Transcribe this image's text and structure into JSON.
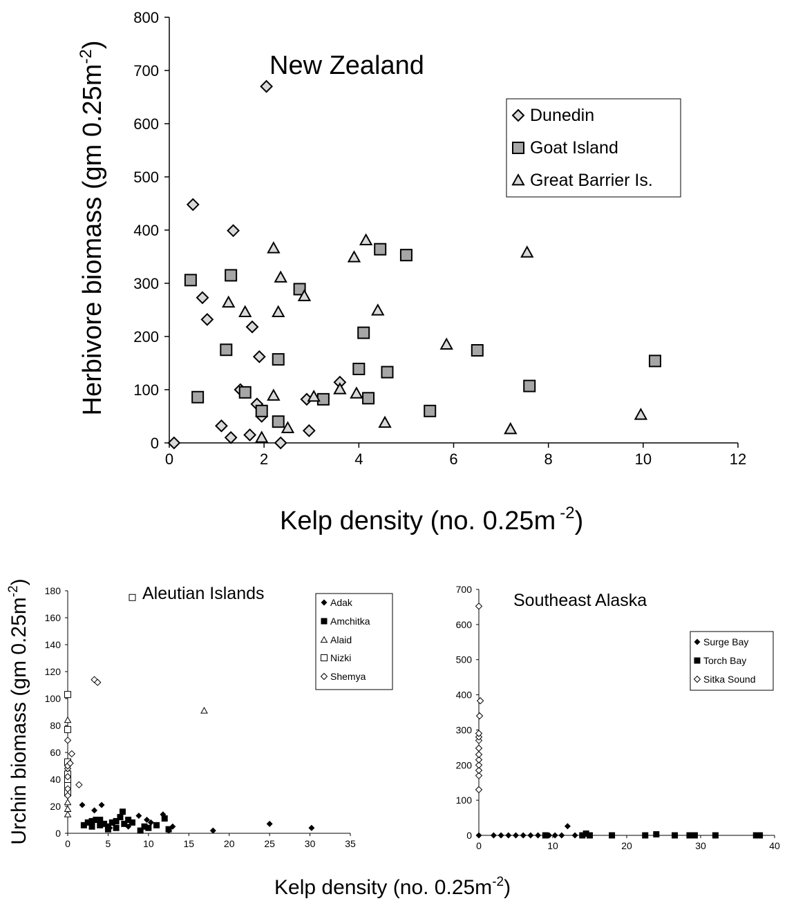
{
  "chart_data": [
    {
      "type": "scatter",
      "title": "New Zealand",
      "xlabel": "Kelp density (no. 0.25m",
      "xlabel_sup": "-2",
      "xlabel_end": ")",
      "ylabel": "Herbivore biomass (gm 0.25m",
      "ylabel_sup": "-2",
      "ylabel_end": ")",
      "xlim": [
        0,
        12
      ],
      "ylim": [
        0,
        800
      ],
      "xticks": [
        0,
        2,
        4,
        6,
        8,
        10,
        12
      ],
      "yticks": [
        0,
        100,
        200,
        300,
        400,
        500,
        600,
        700,
        800
      ],
      "legend_position": "top-right",
      "series": [
        {
          "name": "Dunedin",
          "marker": "diamond",
          "fill": "#d9d9d9",
          "points": [
            [
              0.1,
              0
            ],
            [
              0.5,
              448
            ],
            [
              0.7,
              273
            ],
            [
              0.8,
              232
            ],
            [
              1.1,
              32
            ],
            [
              1.3,
              10
            ],
            [
              1.35,
              399
            ],
            [
              1.5,
              100
            ],
            [
              1.7,
              15
            ],
            [
              1.75,
              218
            ],
            [
              1.85,
              73
            ],
            [
              1.9,
              162
            ],
            [
              1.95,
              50
            ],
            [
              2.05,
              670
            ],
            [
              2.35,
              0
            ],
            [
              2.9,
              82
            ],
            [
              2.95,
              23
            ],
            [
              3.6,
              114
            ]
          ]
        },
        {
          "name": "Goat Island",
          "marker": "square",
          "fill": "#a6a6a6",
          "points": [
            [
              0.45,
              306
            ],
            [
              0.6,
              86
            ],
            [
              1.2,
              175
            ],
            [
              1.3,
              315
            ],
            [
              1.6,
              95
            ],
            [
              1.95,
              60
            ],
            [
              2.3,
              40
            ],
            [
              2.3,
              157
            ],
            [
              2.75,
              289
            ],
            [
              3.25,
              82
            ],
            [
              4.0,
              139
            ],
            [
              4.1,
              207
            ],
            [
              4.2,
              84
            ],
            [
              4.45,
              364
            ],
            [
              4.6,
              133
            ],
            [
              5.0,
              353
            ],
            [
              5.5,
              60
            ],
            [
              6.5,
              174
            ],
            [
              7.6,
              107
            ],
            [
              10.25,
              154
            ]
          ]
        },
        {
          "name": "Great Barrier Is.",
          "marker": "triangle",
          "fill": "#d9d9d9",
          "points": [
            [
              1.25,
              264
            ],
            [
              1.6,
              246
            ],
            [
              1.95,
              10
            ],
            [
              2.2,
              89
            ],
            [
              2.2,
              366
            ],
            [
              2.3,
              246
            ],
            [
              2.35,
              311
            ],
            [
              2.5,
              28
            ],
            [
              2.85,
              276
            ],
            [
              3.05,
              87
            ],
            [
              3.6,
              101
            ],
            [
              3.9,
              349
            ],
            [
              3.95,
              93
            ],
            [
              4.15,
              381
            ],
            [
              4.4,
              249
            ],
            [
              4.55,
              38
            ],
            [
              5.85,
              185
            ],
            [
              7.2,
              26
            ],
            [
              7.55,
              358
            ],
            [
              9.95,
              53
            ]
          ]
        }
      ]
    },
    {
      "type": "scatter",
      "title": "Aleutian Islands",
      "xlabel": "Kelp density (no. 0.25m",
      "xlabel_sup": "-2",
      "xlabel_end": ")",
      "ylabel": "Urchin biomass (gm 0.25m",
      "ylabel_sup": "-2",
      "ylabel_end": ")",
      "xlim": [
        0,
        35
      ],
      "ylim": [
        0,
        180
      ],
      "xticks": [
        0,
        5,
        10,
        15,
        20,
        25,
        30,
        35
      ],
      "yticks": [
        0,
        20,
        40,
        60,
        80,
        100,
        120,
        140,
        160,
        180
      ],
      "legend_position": "top-right",
      "series": [
        {
          "name": "Adak",
          "marker": "diamond-filled",
          "points": [
            [
              1.8,
              21
            ],
            [
              3.3,
              17
            ],
            [
              4.2,
              21
            ],
            [
              5.2,
              4
            ],
            [
              7.5,
              5
            ],
            [
              8.8,
              13
            ],
            [
              9.8,
              10
            ],
            [
              10.3,
              8
            ],
            [
              11.8,
              14
            ],
            [
              12.5,
              2
            ],
            [
              13.0,
              5
            ],
            [
              18.0,
              2
            ],
            [
              25.0,
              7
            ],
            [
              30.2,
              4
            ]
          ]
        },
        {
          "name": "Amchitka",
          "marker": "square-filled",
          "points": [
            [
              2,
              6
            ],
            [
              2.5,
              8
            ],
            [
              3,
              9
            ],
            [
              3,
              5
            ],
            [
              3.5,
              10
            ],
            [
              4,
              6
            ],
            [
              4,
              10
            ],
            [
              4.5,
              7
            ],
            [
              5,
              3
            ],
            [
              5,
              5
            ],
            [
              5.5,
              8
            ],
            [
              6,
              4
            ],
            [
              6,
              9
            ],
            [
              6.5,
              12
            ],
            [
              6.8,
              16
            ],
            [
              7,
              7
            ],
            [
              7.5,
              10
            ],
            [
              8,
              8
            ],
            [
              9,
              2
            ],
            [
              9.5,
              5
            ],
            [
              10,
              4
            ],
            [
              11,
              6
            ],
            [
              12,
              11
            ],
            [
              12.5,
              3
            ]
          ]
        },
        {
          "name": "Alaid",
          "marker": "triangle-open",
          "points": [
            [
              0,
              14
            ],
            [
              0,
              18
            ],
            [
              0,
              23
            ],
            [
              0,
              30
            ],
            [
              0,
              40
            ],
            [
              0,
              84
            ],
            [
              16.9,
              91
            ]
          ]
        },
        {
          "name": "Nizki",
          "marker": "square-open",
          "points": [
            [
              0,
              30
            ],
            [
              0,
              36
            ],
            [
              0,
              40
            ],
            [
              0,
              44
            ],
            [
              0,
              53
            ],
            [
              0,
              77
            ],
            [
              0,
              103
            ],
            [
              8.0,
              175
            ]
          ]
        },
        {
          "name": "Shemya",
          "marker": "diamond-open",
          "points": [
            [
              0,
              28
            ],
            [
              0,
              33
            ],
            [
              0,
              42
            ],
            [
              0,
              48
            ],
            [
              0,
              50
            ],
            [
              0,
              69
            ],
            [
              0.3,
              52
            ],
            [
              0.5,
              59
            ],
            [
              1.4,
              36
            ],
            [
              3.3,
              114
            ],
            [
              3.7,
              112
            ]
          ]
        }
      ]
    },
    {
      "type": "scatter",
      "title": "Southeast Alaska",
      "xlim": [
        0,
        40
      ],
      "ylim": [
        0,
        700
      ],
      "xticks": [
        0,
        10,
        20,
        30,
        40
      ],
      "yticks": [
        0,
        100,
        200,
        300,
        400,
        500,
        600,
        700
      ],
      "legend_position": "right",
      "series": [
        {
          "name": "Surge Bay",
          "marker": "diamond-filled",
          "points": [
            [
              0,
              0
            ],
            [
              2,
              0
            ],
            [
              3,
              0
            ],
            [
              4,
              0
            ],
            [
              5,
              0
            ],
            [
              6,
              0
            ],
            [
              7,
              0
            ],
            [
              8,
              0
            ],
            [
              9.5,
              0
            ],
            [
              10.3,
              0
            ],
            [
              11.2,
              0
            ],
            [
              12,
              26
            ],
            [
              13,
              0
            ]
          ]
        },
        {
          "name": "Torch Bay",
          "marker": "square-filled",
          "points": [
            [
              9,
              0
            ],
            [
              14,
              0
            ],
            [
              14.5,
              5
            ],
            [
              15,
              0
            ],
            [
              18,
              0
            ],
            [
              22.5,
              0
            ],
            [
              24,
              3
            ],
            [
              26.5,
              0
            ],
            [
              28.5,
              0
            ],
            [
              29.2,
              0
            ],
            [
              32,
              0
            ],
            [
              37.5,
              0
            ],
            [
              38,
              0
            ]
          ]
        },
        {
          "name": "Sitka Sound",
          "marker": "diamond-open",
          "points": [
            [
              0,
              130
            ],
            [
              0,
              170
            ],
            [
              0,
              185
            ],
            [
              0,
              200
            ],
            [
              0,
              215
            ],
            [
              0,
              230
            ],
            [
              0,
              248
            ],
            [
              0,
              270
            ],
            [
              0,
              280
            ],
            [
              0,
              290
            ],
            [
              0.1,
              340
            ],
            [
              0.2,
              383
            ],
            [
              0,
              652
            ]
          ]
        }
      ]
    }
  ],
  "shared_xlabel": "Kelp density (no. 0.25m",
  "shared_xlabel_sup": "-2",
  "shared_xlabel_end": ")"
}
